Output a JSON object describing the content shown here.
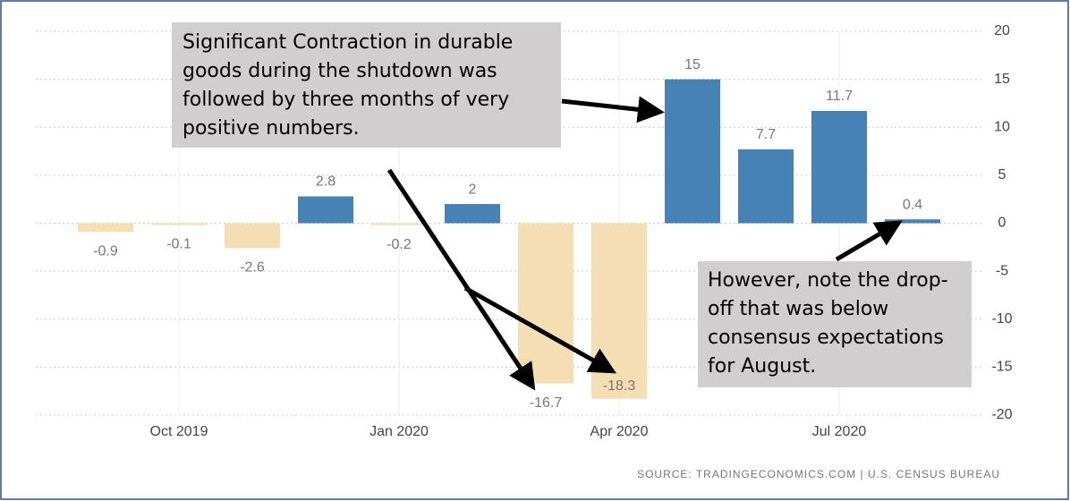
{
  "chart_data": {
    "type": "bar",
    "categories": [
      null,
      "Oct 2019",
      null,
      null,
      "Jan 2020",
      null,
      null,
      "Apr 2020",
      null,
      null,
      "Jul 2020",
      null
    ],
    "values": [
      -0.9,
      -0.1,
      -2.6,
      2.8,
      -0.2,
      2,
      -16.7,
      -18.3,
      15,
      7.7,
      11.7,
      0.4
    ],
    "positive_color": "#4682b4",
    "negative_color": "#f5deb3",
    "ylim": [
      -20,
      20
    ],
    "yticks": [
      -20,
      -15,
      -10,
      -5,
      0,
      5,
      10,
      15,
      20
    ],
    "grid": true,
    "annotations": [
      {
        "lines": [
          "Significant Contraction in durable",
          "goods during the shutdown was",
          "followed by three months of very",
          "positive numbers."
        ]
      },
      {
        "lines": [
          "However, note the drop-",
          "off that was below",
          "consensus expectations",
          "for August."
        ]
      }
    ],
    "source": "SOURCE: TRADINGECONOMICS.COM | U.S. CENSUS BUREAU"
  }
}
